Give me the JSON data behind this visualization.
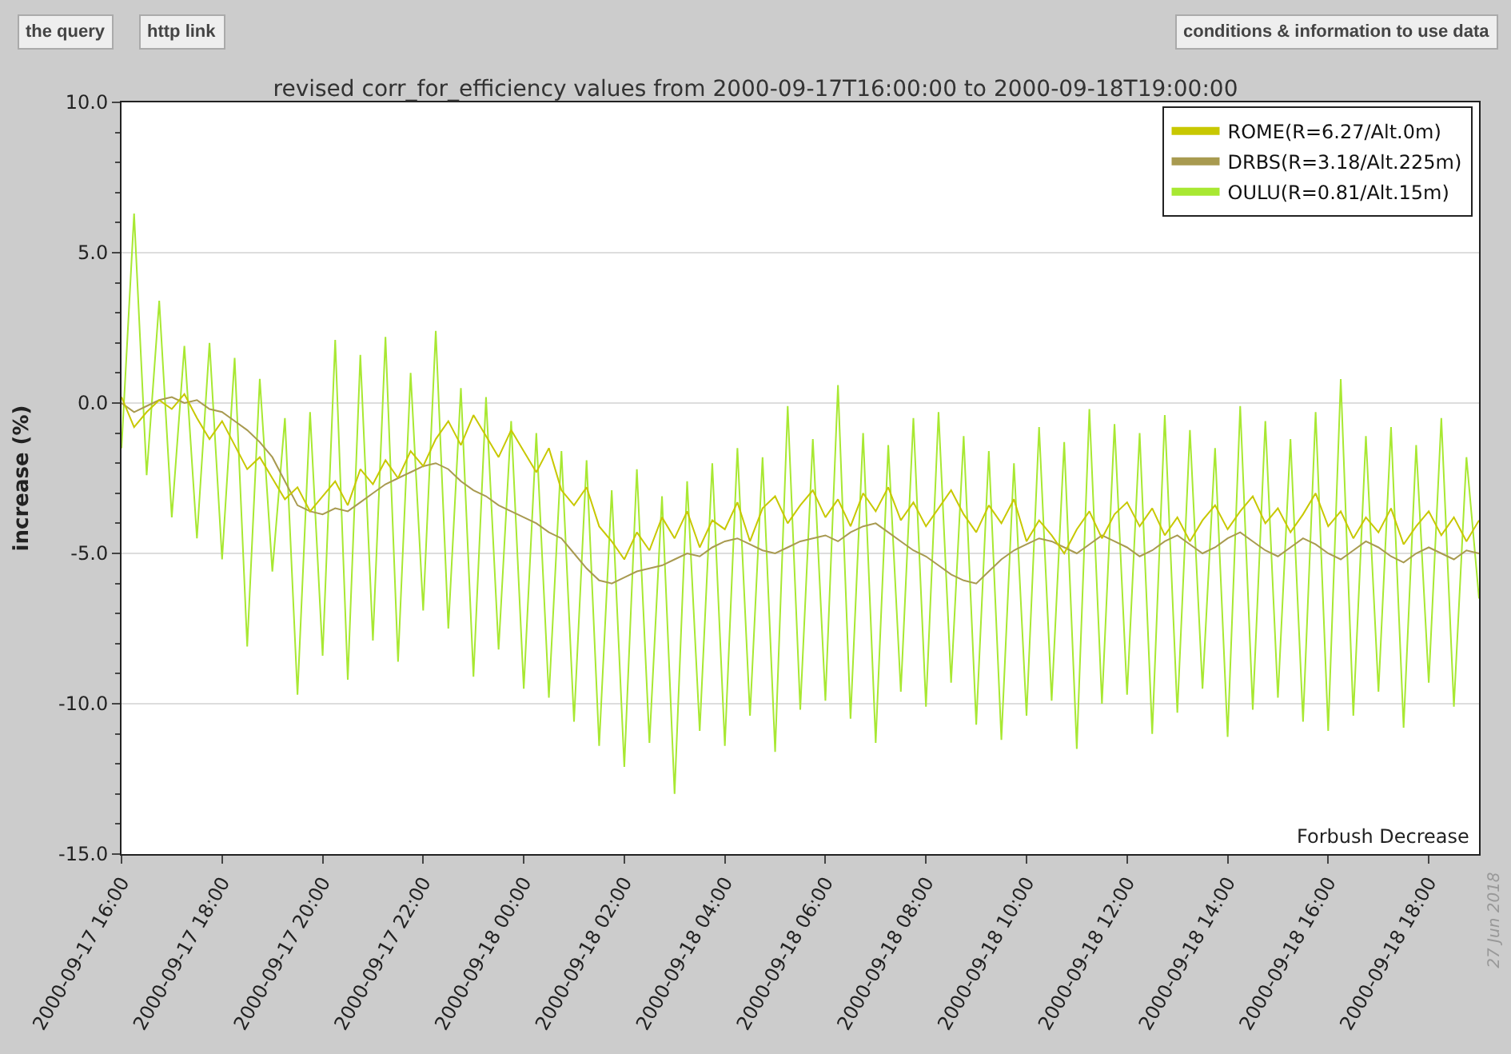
{
  "chart_data": {
    "type": "line",
    "title": "revised corr_for_efficiency values from 2000-09-17T16:00:00 to 2000-09-18T19:00:00",
    "ylabel": "increase (%)",
    "annotations": [
      "Forbush Decrease",
      "the query",
      "http link",
      "conditions & information to use data",
      "27 Jun 2018"
    ],
    "x": [
      "2000-09-17T16:00",
      "2000-09-17T16:15",
      "2000-09-17T16:30",
      "2000-09-17T16:45",
      "2000-09-17T17:00",
      "2000-09-17T17:15",
      "2000-09-17T17:30",
      "2000-09-17T17:45",
      "2000-09-17T18:00",
      "2000-09-17T18:15",
      "2000-09-17T18:30",
      "2000-09-17T18:45",
      "2000-09-17T19:00",
      "2000-09-17T19:15",
      "2000-09-17T19:30",
      "2000-09-17T19:45",
      "2000-09-17T20:00",
      "2000-09-17T20:15",
      "2000-09-17T20:30",
      "2000-09-17T20:45",
      "2000-09-17T21:00",
      "2000-09-17T21:15",
      "2000-09-17T21:30",
      "2000-09-17T21:45",
      "2000-09-17T22:00",
      "2000-09-17T22:15",
      "2000-09-17T22:30",
      "2000-09-17T22:45",
      "2000-09-17T23:00",
      "2000-09-17T23:15",
      "2000-09-17T23:30",
      "2000-09-17T23:45",
      "2000-09-18T00:00",
      "2000-09-18T00:15",
      "2000-09-18T00:30",
      "2000-09-18T00:45",
      "2000-09-18T01:00",
      "2000-09-18T01:15",
      "2000-09-18T01:30",
      "2000-09-18T01:45",
      "2000-09-18T02:00",
      "2000-09-18T02:15",
      "2000-09-18T02:30",
      "2000-09-18T02:45",
      "2000-09-18T03:00",
      "2000-09-18T03:15",
      "2000-09-18T03:30",
      "2000-09-18T03:45",
      "2000-09-18T04:00",
      "2000-09-18T04:15",
      "2000-09-18T04:30",
      "2000-09-18T04:45",
      "2000-09-18T05:00",
      "2000-09-18T05:15",
      "2000-09-18T05:30",
      "2000-09-18T05:45",
      "2000-09-18T06:00",
      "2000-09-18T06:15",
      "2000-09-18T06:30",
      "2000-09-18T06:45",
      "2000-09-18T07:00",
      "2000-09-18T07:15",
      "2000-09-18T07:30",
      "2000-09-18T07:45",
      "2000-09-18T08:00",
      "2000-09-18T08:15",
      "2000-09-18T08:30",
      "2000-09-18T08:45",
      "2000-09-18T09:00",
      "2000-09-18T09:15",
      "2000-09-18T09:30",
      "2000-09-18T09:45",
      "2000-09-18T10:00",
      "2000-09-18T10:15",
      "2000-09-18T10:30",
      "2000-09-18T10:45",
      "2000-09-18T11:00",
      "2000-09-18T11:15",
      "2000-09-18T11:30",
      "2000-09-18T11:45",
      "2000-09-18T12:00",
      "2000-09-18T12:15",
      "2000-09-18T12:30",
      "2000-09-18T12:45",
      "2000-09-18T13:00",
      "2000-09-18T13:15",
      "2000-09-18T13:30",
      "2000-09-18T13:45",
      "2000-09-18T14:00",
      "2000-09-18T14:15",
      "2000-09-18T14:30",
      "2000-09-18T14:45",
      "2000-09-18T15:00",
      "2000-09-18T15:15",
      "2000-09-18T15:30",
      "2000-09-18T15:45",
      "2000-09-18T16:00",
      "2000-09-18T16:15",
      "2000-09-18T16:30",
      "2000-09-18T16:45",
      "2000-09-18T17:00",
      "2000-09-18T17:15",
      "2000-09-18T17:30",
      "2000-09-18T17:45",
      "2000-09-18T18:00",
      "2000-09-18T18:15",
      "2000-09-18T18:30",
      "2000-09-18T18:45",
      "2000-09-18T19:00"
    ],
    "series": [
      {
        "name": "ROME(R=6.27/Alt.0m)",
        "color": "#c8c800",
        "values": [
          0.2,
          -0.8,
          -0.3,
          0.1,
          -0.2,
          0.3,
          -0.5,
          -1.2,
          -0.6,
          -1.4,
          -2.2,
          -1.8,
          -2.5,
          -3.2,
          -2.8,
          -3.6,
          -3.1,
          -2.6,
          -3.4,
          -2.2,
          -2.7,
          -1.9,
          -2.5,
          -1.6,
          -2.1,
          -1.2,
          -0.6,
          -1.4,
          -0.4,
          -1.1,
          -1.8,
          -0.9,
          -1.6,
          -2.3,
          -1.5,
          -2.9,
          -3.4,
          -2.8,
          -4.1,
          -4.6,
          -5.2,
          -4.3,
          -4.9,
          -3.8,
          -4.5,
          -3.6,
          -4.8,
          -3.9,
          -4.2,
          -3.3,
          -4.6,
          -3.5,
          -3.1,
          -4.0,
          -3.4,
          -2.9,
          -3.8,
          -3.2,
          -4.1,
          -3.0,
          -3.6,
          -2.8,
          -3.9,
          -3.3,
          -4.1,
          -3.5,
          -2.9,
          -3.7,
          -4.3,
          -3.4,
          -4.0,
          -3.2,
          -4.6,
          -3.9,
          -4.4,
          -5.0,
          -4.2,
          -3.6,
          -4.5,
          -3.7,
          -3.3,
          -4.1,
          -3.5,
          -4.4,
          -3.8,
          -4.6,
          -3.9,
          -3.4,
          -4.2,
          -3.6,
          -3.1,
          -4.0,
          -3.5,
          -4.3,
          -3.7,
          -3.0,
          -4.1,
          -3.6,
          -4.5,
          -3.8,
          -4.3,
          -3.5,
          -4.7,
          -4.1,
          -3.6,
          -4.4,
          -3.8,
          -4.6,
          -3.9
        ]
      },
      {
        "name": "DRBS(R=3.18/Alt.225m)",
        "color": "#a89a50",
        "values": [
          0.0,
          -0.3,
          -0.1,
          0.1,
          0.2,
          0.0,
          0.1,
          -0.2,
          -0.3,
          -0.6,
          -0.9,
          -1.3,
          -1.8,
          -2.6,
          -3.4,
          -3.6,
          -3.7,
          -3.5,
          -3.6,
          -3.3,
          -3.0,
          -2.7,
          -2.5,
          -2.3,
          -2.1,
          -2.0,
          -2.2,
          -2.6,
          -2.9,
          -3.1,
          -3.4,
          -3.6,
          -3.8,
          -4.0,
          -4.3,
          -4.5,
          -5.0,
          -5.5,
          -5.9,
          -6.0,
          -5.8,
          -5.6,
          -5.5,
          -5.4,
          -5.2,
          -5.0,
          -5.1,
          -4.8,
          -4.6,
          -4.5,
          -4.7,
          -4.9,
          -5.0,
          -4.8,
          -4.6,
          -4.5,
          -4.4,
          -4.6,
          -4.3,
          -4.1,
          -4.0,
          -4.3,
          -4.6,
          -4.9,
          -5.1,
          -5.4,
          -5.7,
          -5.9,
          -6.0,
          -5.6,
          -5.2,
          -4.9,
          -4.7,
          -4.5,
          -4.6,
          -4.8,
          -5.0,
          -4.7,
          -4.4,
          -4.6,
          -4.8,
          -5.1,
          -4.9,
          -4.6,
          -4.4,
          -4.7,
          -5.0,
          -4.8,
          -4.5,
          -4.3,
          -4.6,
          -4.9,
          -5.1,
          -4.8,
          -4.5,
          -4.7,
          -5.0,
          -5.2,
          -4.9,
          -4.6,
          -4.8,
          -5.1,
          -5.3,
          -5.0,
          -4.8,
          -5.0,
          -5.2,
          -4.9,
          -5.0
        ]
      },
      {
        "name": "OULU(R=0.81/Alt.15m)",
        "color": "#a8e832",
        "values": [
          -1.5,
          6.3,
          -2.4,
          3.4,
          -3.8,
          1.9,
          -4.5,
          2.0,
          -5.2,
          1.5,
          -8.1,
          0.8,
          -5.6,
          -0.5,
          -9.7,
          -0.3,
          -8.4,
          2.1,
          -9.2,
          1.6,
          -7.9,
          2.2,
          -8.6,
          1.0,
          -6.9,
          2.4,
          -7.5,
          0.5,
          -9.1,
          0.2,
          -8.2,
          -0.6,
          -9.5,
          -1.0,
          -9.8,
          -1.6,
          -10.6,
          -1.9,
          -11.4,
          -2.9,
          -12.1,
          -2.2,
          -11.3,
          -3.1,
          -13.0,
          -2.6,
          -10.9,
          -2.0,
          -11.4,
          -1.5,
          -10.4,
          -1.8,
          -11.6,
          -0.1,
          -10.2,
          -1.2,
          -9.9,
          0.6,
          -10.5,
          -1.0,
          -11.3,
          -1.4,
          -9.6,
          -0.5,
          -10.1,
          -0.3,
          -9.3,
          -1.1,
          -10.7,
          -1.6,
          -11.2,
          -2.0,
          -10.4,
          -0.8,
          -9.9,
          -1.3,
          -11.5,
          -0.2,
          -10.0,
          -0.7,
          -9.7,
          -1.0,
          -11.0,
          -0.4,
          -10.3,
          -0.9,
          -9.5,
          -1.5,
          -11.1,
          -0.1,
          -10.2,
          -0.6,
          -9.8,
          -1.2,
          -10.6,
          -0.3,
          -10.9,
          0.8,
          -10.4,
          -1.1,
          -9.6,
          -0.8,
          -10.8,
          -1.4,
          -9.3,
          -0.5,
          -10.1,
          -1.8,
          -6.5
        ]
      }
    ],
    "xlim": [
      "2000-09-17T16:00",
      "2000-09-18T19:00"
    ],
    "xticks": [
      {
        "value": "2000-09-17T16:00",
        "label": "2000-09-17 16:00"
      },
      {
        "value": "2000-09-17T18:00",
        "label": "2000-09-17 18:00"
      },
      {
        "value": "2000-09-17T20:00",
        "label": "2000-09-17 20:00"
      },
      {
        "value": "2000-09-17T22:00",
        "label": "2000-09-17 22:00"
      },
      {
        "value": "2000-09-18T00:00",
        "label": "2000-09-18 00:00"
      },
      {
        "value": "2000-09-18T02:00",
        "label": "2000-09-18 02:00"
      },
      {
        "value": "2000-09-18T04:00",
        "label": "2000-09-18 04:00"
      },
      {
        "value": "2000-09-18T06:00",
        "label": "2000-09-18 06:00"
      },
      {
        "value": "2000-09-18T08:00",
        "label": "2000-09-18 08:00"
      },
      {
        "value": "2000-09-18T10:00",
        "label": "2000-09-18 10:00"
      },
      {
        "value": "2000-09-18T12:00",
        "label": "2000-09-18 12:00"
      },
      {
        "value": "2000-09-18T14:00",
        "label": "2000-09-18 14:00"
      },
      {
        "value": "2000-09-18T16:00",
        "label": "2000-09-18 16:00"
      },
      {
        "value": "2000-09-18T18:00",
        "label": "2000-09-18 18:00"
      }
    ],
    "ylim": [
      -15,
      10
    ],
    "yticks": [
      {
        "value": -15,
        "label": "-15.0"
      },
      {
        "value": -10,
        "label": "-10.0"
      },
      {
        "value": -5,
        "label": "-5.0"
      },
      {
        "value": 0,
        "label": "0.0"
      },
      {
        "value": 5,
        "label": "5.0"
      },
      {
        "value": 10,
        "label": "10.0"
      }
    ],
    "grid": "y",
    "legend": "top right",
    "marker": "none",
    "line_style": "solid"
  }
}
